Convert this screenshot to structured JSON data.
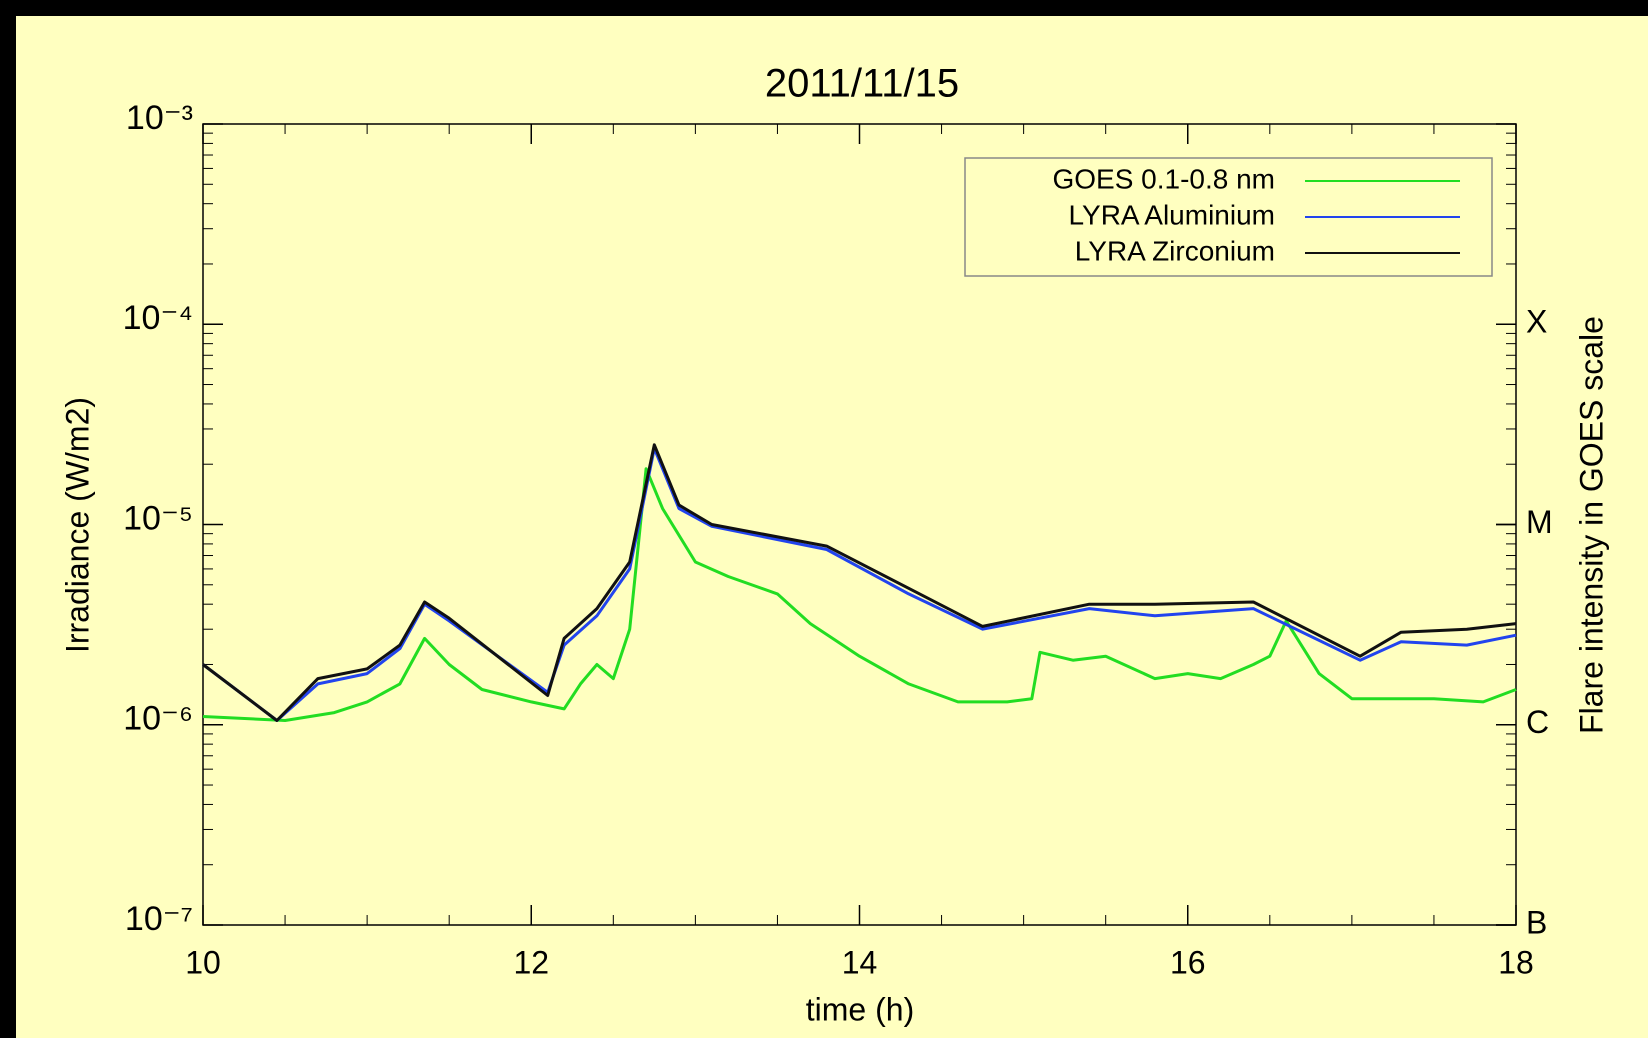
{
  "chart_data": {
    "type": "line",
    "title": "2011/11/15",
    "x_label": "time (h)",
    "y_label": "Irradiance (W/m2)",
    "y2_label": "Flare intensity in GOES scale",
    "log_y": true,
    "xlim": [
      10,
      18
    ],
    "xticks": [
      10,
      12,
      14,
      16,
      18
    ],
    "ylim": [
      1e-07,
      0.001
    ],
    "yticks": [
      {
        "value": 1e-07,
        "label": "10⁻⁷"
      },
      {
        "value": 1e-06,
        "label": "10⁻⁶"
      },
      {
        "value": 1e-05,
        "label": "10⁻⁵"
      },
      {
        "value": 0.0001,
        "label": "10⁻⁴"
      },
      {
        "value": 0.001,
        "label": "10⁻³"
      }
    ],
    "y2lim": [
      1e-07,
      0.001
    ],
    "y2ticks": [
      {
        "value": 1e-07,
        "label": "B"
      },
      {
        "value": 1e-06,
        "label": "C"
      },
      {
        "value": 1e-05,
        "label": "M"
      },
      {
        "value": 0.0001,
        "label": "X"
      }
    ],
    "legend": "upper right",
    "series": [
      {
        "name": "GOES 0.1-0.8 nm",
        "color": "#22dd22",
        "x": [
          10,
          10.5,
          10.8,
          11.0,
          11.2,
          11.35,
          11.5,
          11.7,
          12.0,
          12.2,
          12.3,
          12.4,
          12.5,
          12.6,
          12.7,
          12.8,
          13.0,
          13.2,
          13.5,
          13.7,
          14.0,
          14.3,
          14.6,
          14.9,
          15.05,
          15.1,
          15.3,
          15.5,
          15.8,
          16.0,
          16.2,
          16.4,
          16.5,
          16.6,
          16.8,
          17.0,
          17.5,
          17.8,
          18.0
        ],
        "values": [
          1.1e-06,
          1.05e-06,
          1.15e-06,
          1.3e-06,
          1.6e-06,
          2.7e-06,
          2e-06,
          1.5e-06,
          1.3e-06,
          1.2e-06,
          1.6e-06,
          2e-06,
          1.7e-06,
          3e-06,
          1.9e-05,
          1.2e-05,
          6.5e-06,
          5.5e-06,
          4.5e-06,
          3.2e-06,
          2.2e-06,
          1.6e-06,
          1.3e-06,
          1.3e-06,
          1.35e-06,
          2.3e-06,
          2.1e-06,
          2.2e-06,
          1.7e-06,
          1.8e-06,
          1.7e-06,
          2e-06,
          2.2e-06,
          3.3e-06,
          1.8e-06,
          1.35e-06,
          1.35e-06,
          1.3e-06,
          1.5e-06
        ]
      },
      {
        "name": "LYRA Aluminium",
        "color": "#2244ee",
        "x": [
          10,
          10.45,
          10.7,
          11.0,
          11.2,
          11.35,
          11.5,
          12.1,
          12.2,
          12.4,
          12.6,
          12.75,
          12.9,
          13.1,
          13.8,
          14.3,
          14.75,
          15.4,
          15.8,
          16.4,
          17.05,
          17.3,
          17.7,
          18.0
        ],
        "values": [
          2e-06,
          1.05e-06,
          1.6e-06,
          1.8e-06,
          2.4e-06,
          4e-06,
          3.3e-06,
          1.45e-06,
          2.5e-06,
          3.5e-06,
          6e-06,
          2.4e-05,
          1.2e-05,
          9.8e-06,
          7.5e-06,
          4.5e-06,
          3e-06,
          3.8e-06,
          3.5e-06,
          3.8e-06,
          2.1e-06,
          2.6e-06,
          2.5e-06,
          2.8e-06
        ]
      },
      {
        "name": "LYRA Zirconium",
        "color": "#111111",
        "x": [
          10,
          10.45,
          10.7,
          11.0,
          11.2,
          11.35,
          11.5,
          12.1,
          12.2,
          12.4,
          12.6,
          12.75,
          12.9,
          13.1,
          13.8,
          14.3,
          14.75,
          15.4,
          15.8,
          16.4,
          17.05,
          17.3,
          17.7,
          18.0
        ],
        "values": [
          2e-06,
          1.05e-06,
          1.7e-06,
          1.9e-06,
          2.5e-06,
          4.1e-06,
          3.4e-06,
          1.4e-06,
          2.7e-06,
          3.8e-06,
          6.5e-06,
          2.5e-05,
          1.25e-05,
          1e-05,
          7.8e-06,
          4.8e-06,
          3.1e-06,
          4e-06,
          4e-06,
          4.1e-06,
          2.2e-06,
          2.9e-06,
          3e-06,
          3.2e-06
        ]
      }
    ]
  }
}
